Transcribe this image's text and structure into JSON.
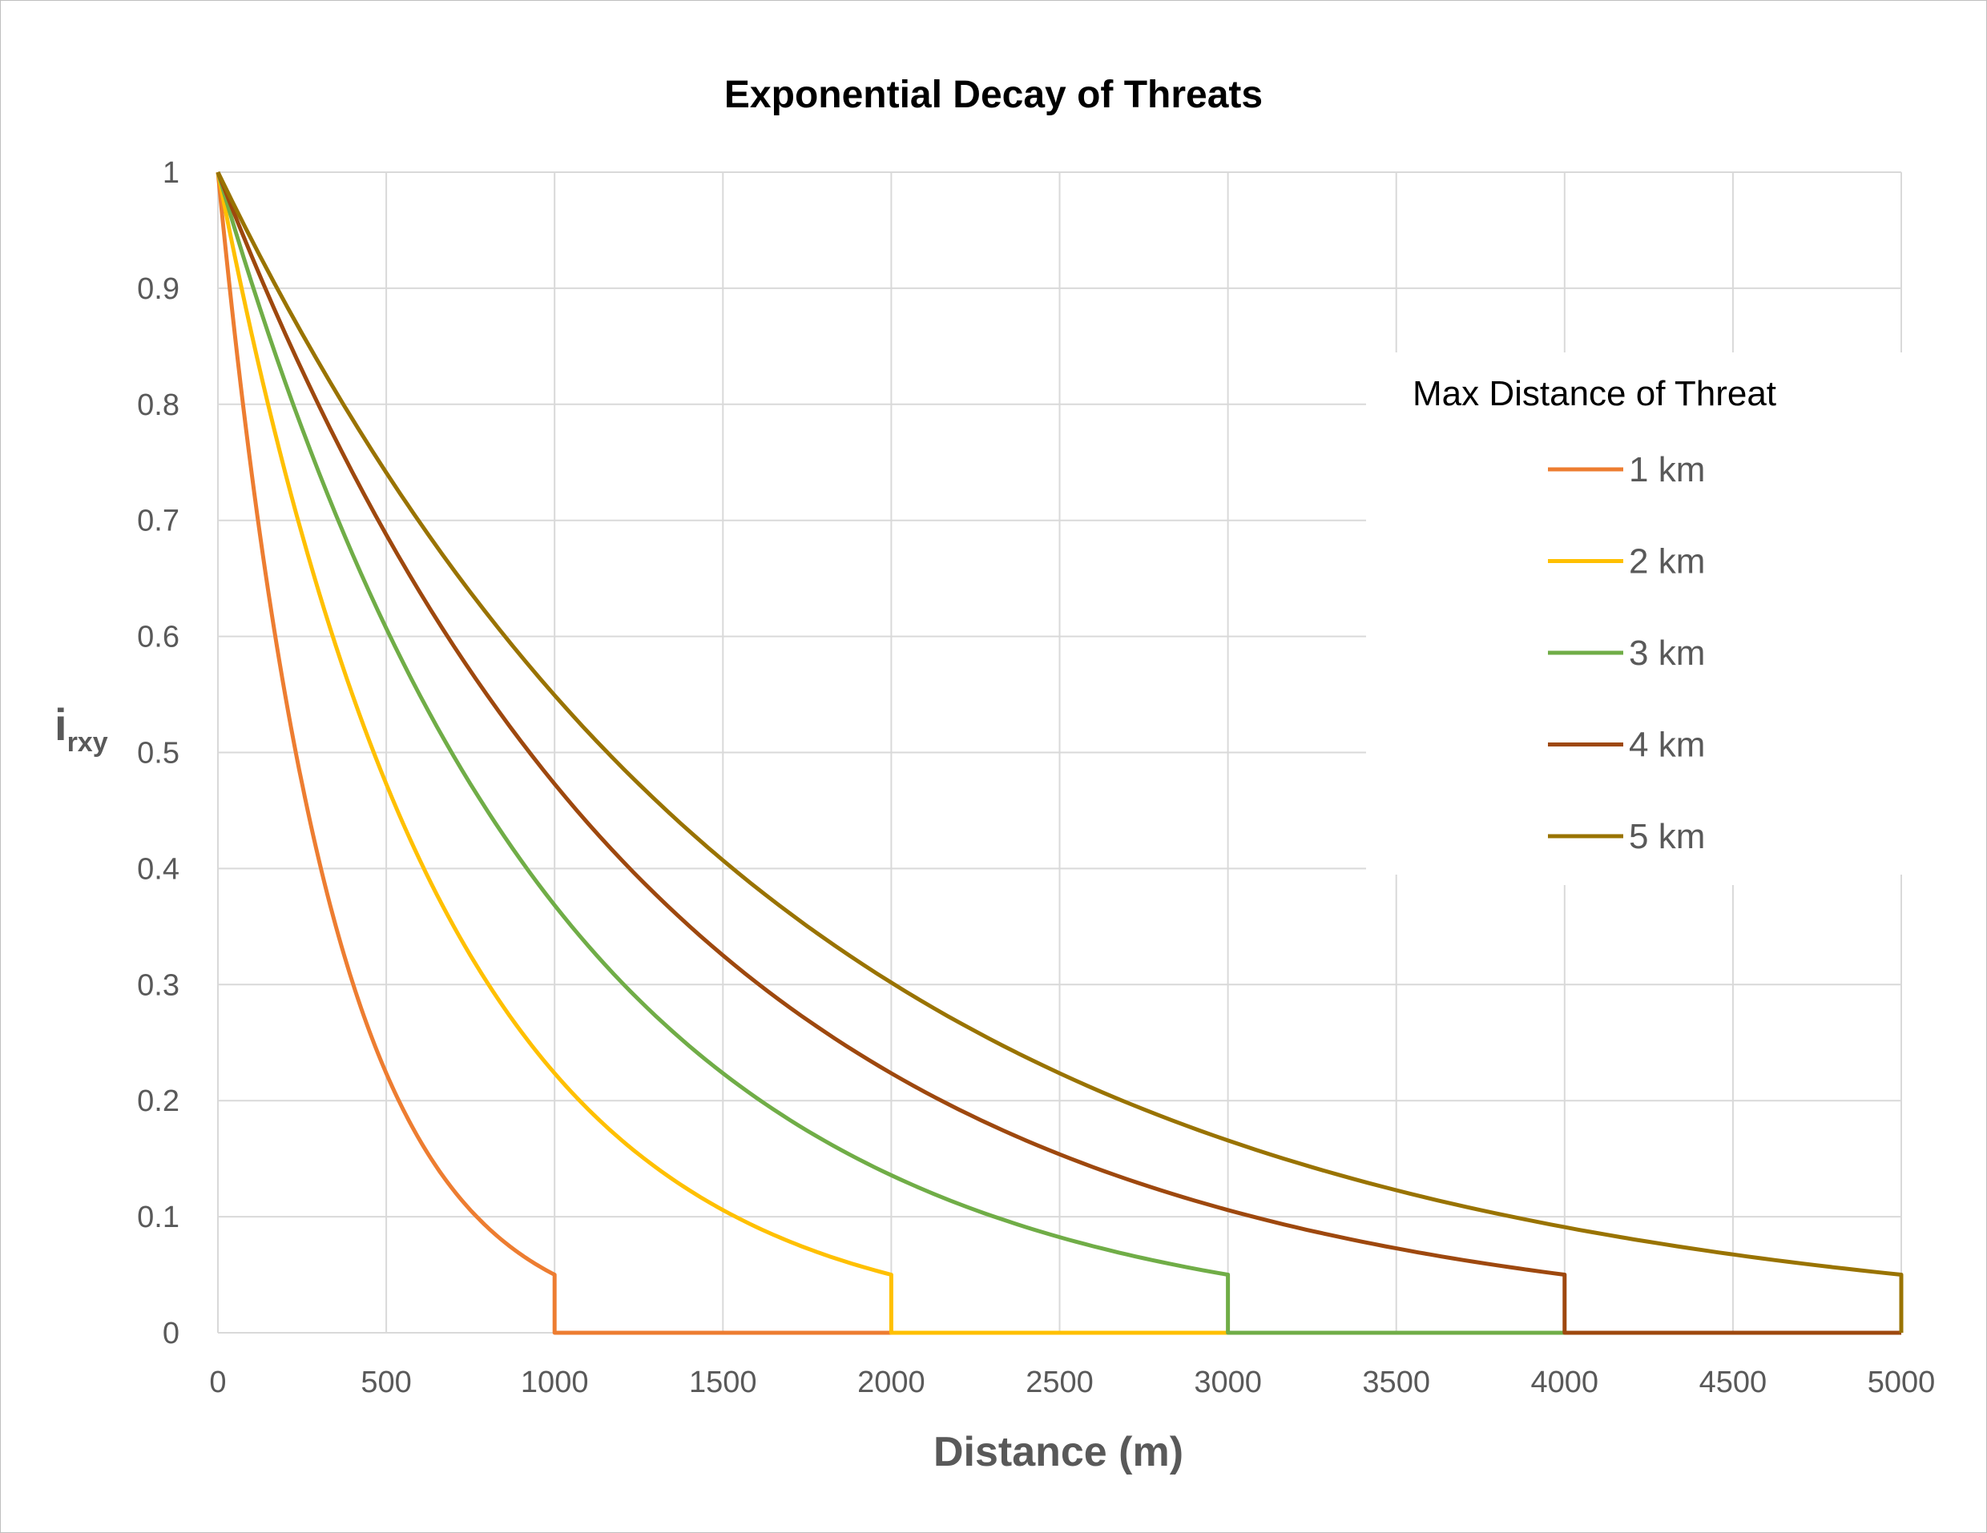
{
  "chart_data": {
    "type": "line",
    "title": "Exponential Decay of Threats",
    "xlabel": "Distance (m)",
    "ylabel": {
      "main": "i",
      "sub": "rxy"
    },
    "xlim": [
      0,
      5000
    ],
    "ylim": [
      0,
      1
    ],
    "xticks": [
      "0",
      "500",
      "1000",
      "1500",
      "2000",
      "2500",
      "3000",
      "3500",
      "4000",
      "4500",
      "5000"
    ],
    "yticks": [
      "0",
      "0.1",
      "0.2",
      "0.3",
      "0.4",
      "0.5",
      "0.6",
      "0.7",
      "0.8",
      "0.9",
      "1"
    ],
    "grid": true,
    "legend": {
      "title": "Max Distance of Threat",
      "placement": "right"
    },
    "series": [
      {
        "name": "1 km",
        "color": "#ed7d31",
        "max_distance": 1000,
        "end_value": 0.05,
        "points": [
          [
            0,
            1
          ],
          [
            100,
            0.74
          ],
          [
            200,
            0.55
          ],
          [
            300,
            0.41
          ],
          [
            400,
            0.3
          ],
          [
            500,
            0.22
          ],
          [
            600,
            0.17
          ],
          [
            700,
            0.12
          ],
          [
            800,
            0.09
          ],
          [
            900,
            0.07
          ],
          [
            1000,
            0.05
          ],
          [
            1000,
            0
          ],
          [
            5000,
            0
          ]
        ]
      },
      {
        "name": "2 km",
        "color": "#ffc000",
        "max_distance": 2000,
        "end_value": 0.05,
        "points": [
          [
            0,
            1
          ],
          [
            200,
            0.74
          ],
          [
            400,
            0.55
          ],
          [
            600,
            0.41
          ],
          [
            800,
            0.3
          ],
          [
            1000,
            0.22
          ],
          [
            1200,
            0.17
          ],
          [
            1400,
            0.12
          ],
          [
            1600,
            0.09
          ],
          [
            1800,
            0.07
          ],
          [
            2000,
            0.05
          ],
          [
            2000,
            0
          ],
          [
            5000,
            0
          ]
        ]
      },
      {
        "name": "3 km",
        "color": "#70ad47",
        "max_distance": 3000,
        "end_value": 0.05,
        "points": [
          [
            0,
            1
          ],
          [
            300,
            0.74
          ],
          [
            600,
            0.55
          ],
          [
            900,
            0.41
          ],
          [
            1200,
            0.3
          ],
          [
            1500,
            0.22
          ],
          [
            1800,
            0.17
          ],
          [
            2100,
            0.12
          ],
          [
            2400,
            0.09
          ],
          [
            2700,
            0.07
          ],
          [
            3000,
            0.05
          ],
          [
            3000,
            0
          ],
          [
            5000,
            0
          ]
        ]
      },
      {
        "name": "4 km",
        "color": "#9e480e",
        "max_distance": 4000,
        "end_value": 0.05,
        "points": [
          [
            0,
            1
          ],
          [
            400,
            0.74
          ],
          [
            800,
            0.55
          ],
          [
            1200,
            0.41
          ],
          [
            1600,
            0.3
          ],
          [
            2000,
            0.22
          ],
          [
            2400,
            0.17
          ],
          [
            2800,
            0.12
          ],
          [
            3200,
            0.09
          ],
          [
            3600,
            0.07
          ],
          [
            4000,
            0.05
          ],
          [
            4000,
            0
          ],
          [
            5000,
            0
          ]
        ]
      },
      {
        "name": "5 km",
        "color": "#997300",
        "max_distance": 5000,
        "end_value": 0.05,
        "points": [
          [
            0,
            1
          ],
          [
            500,
            0.74
          ],
          [
            1000,
            0.55
          ],
          [
            1500,
            0.41
          ],
          [
            2000,
            0.3
          ],
          [
            2500,
            0.22
          ],
          [
            3000,
            0.17
          ],
          [
            3500,
            0.12
          ],
          [
            4000,
            0.09
          ],
          [
            4500,
            0.07
          ],
          [
            5000,
            0.05
          ],
          [
            5000,
            0
          ]
        ]
      }
    ]
  }
}
